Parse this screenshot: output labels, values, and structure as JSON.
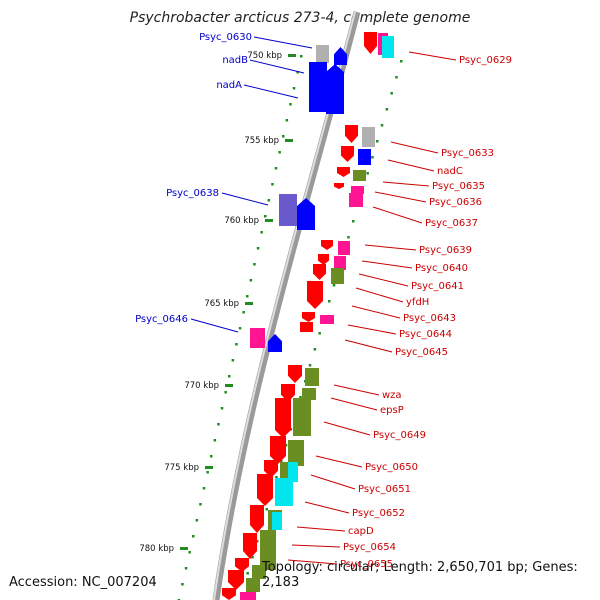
{
  "title": "Psychrobacter arcticus 273-4, complete genome",
  "accession": "Accession: NC_007204",
  "topology": "Topology: circular; Length: 2,650,701 bp; Genes: 2,183",
  "kbp_labels": [
    "750 kbp",
    "755 kbp",
    "760 kbp",
    "765 kbp",
    "770 kbp",
    "775 kbp",
    "780 kbp"
  ],
  "left_genes": [
    "Psyc_0630",
    "nadB",
    "nadA",
    "Psyc_0638",
    "Psyc_0646"
  ],
  "right_genes": [
    "Psyc_0629",
    "Psyc_0633",
    "nadC",
    "Psyc_0635",
    "Psyc_0636",
    "Psyc_0637",
    "Psyc_0639",
    "Psyc_0640",
    "Psyc_0641",
    "yfdH",
    "Psyc_0643",
    "Psyc_0644",
    "Psyc_0645",
    "wza",
    "epsP",
    "Psyc_0649",
    "Psyc_0650",
    "Psyc_0651",
    "Psyc_0652",
    "capD",
    "Psyc_0654",
    "Psyc_0655"
  ],
  "colors": {
    "forward_label": "#0000cc",
    "reverse_label": "#cc0000",
    "red_gene": "#ff0000",
    "blue_gene": "#0000ff",
    "olive_gene": "#6b8e23",
    "cyan_gene": "#00e5ee",
    "pink_gene": "#ff1493",
    "grey_gene": "#b0b0b0",
    "purple_gene": "#6a5acd",
    "dot": "#228b22"
  }
}
